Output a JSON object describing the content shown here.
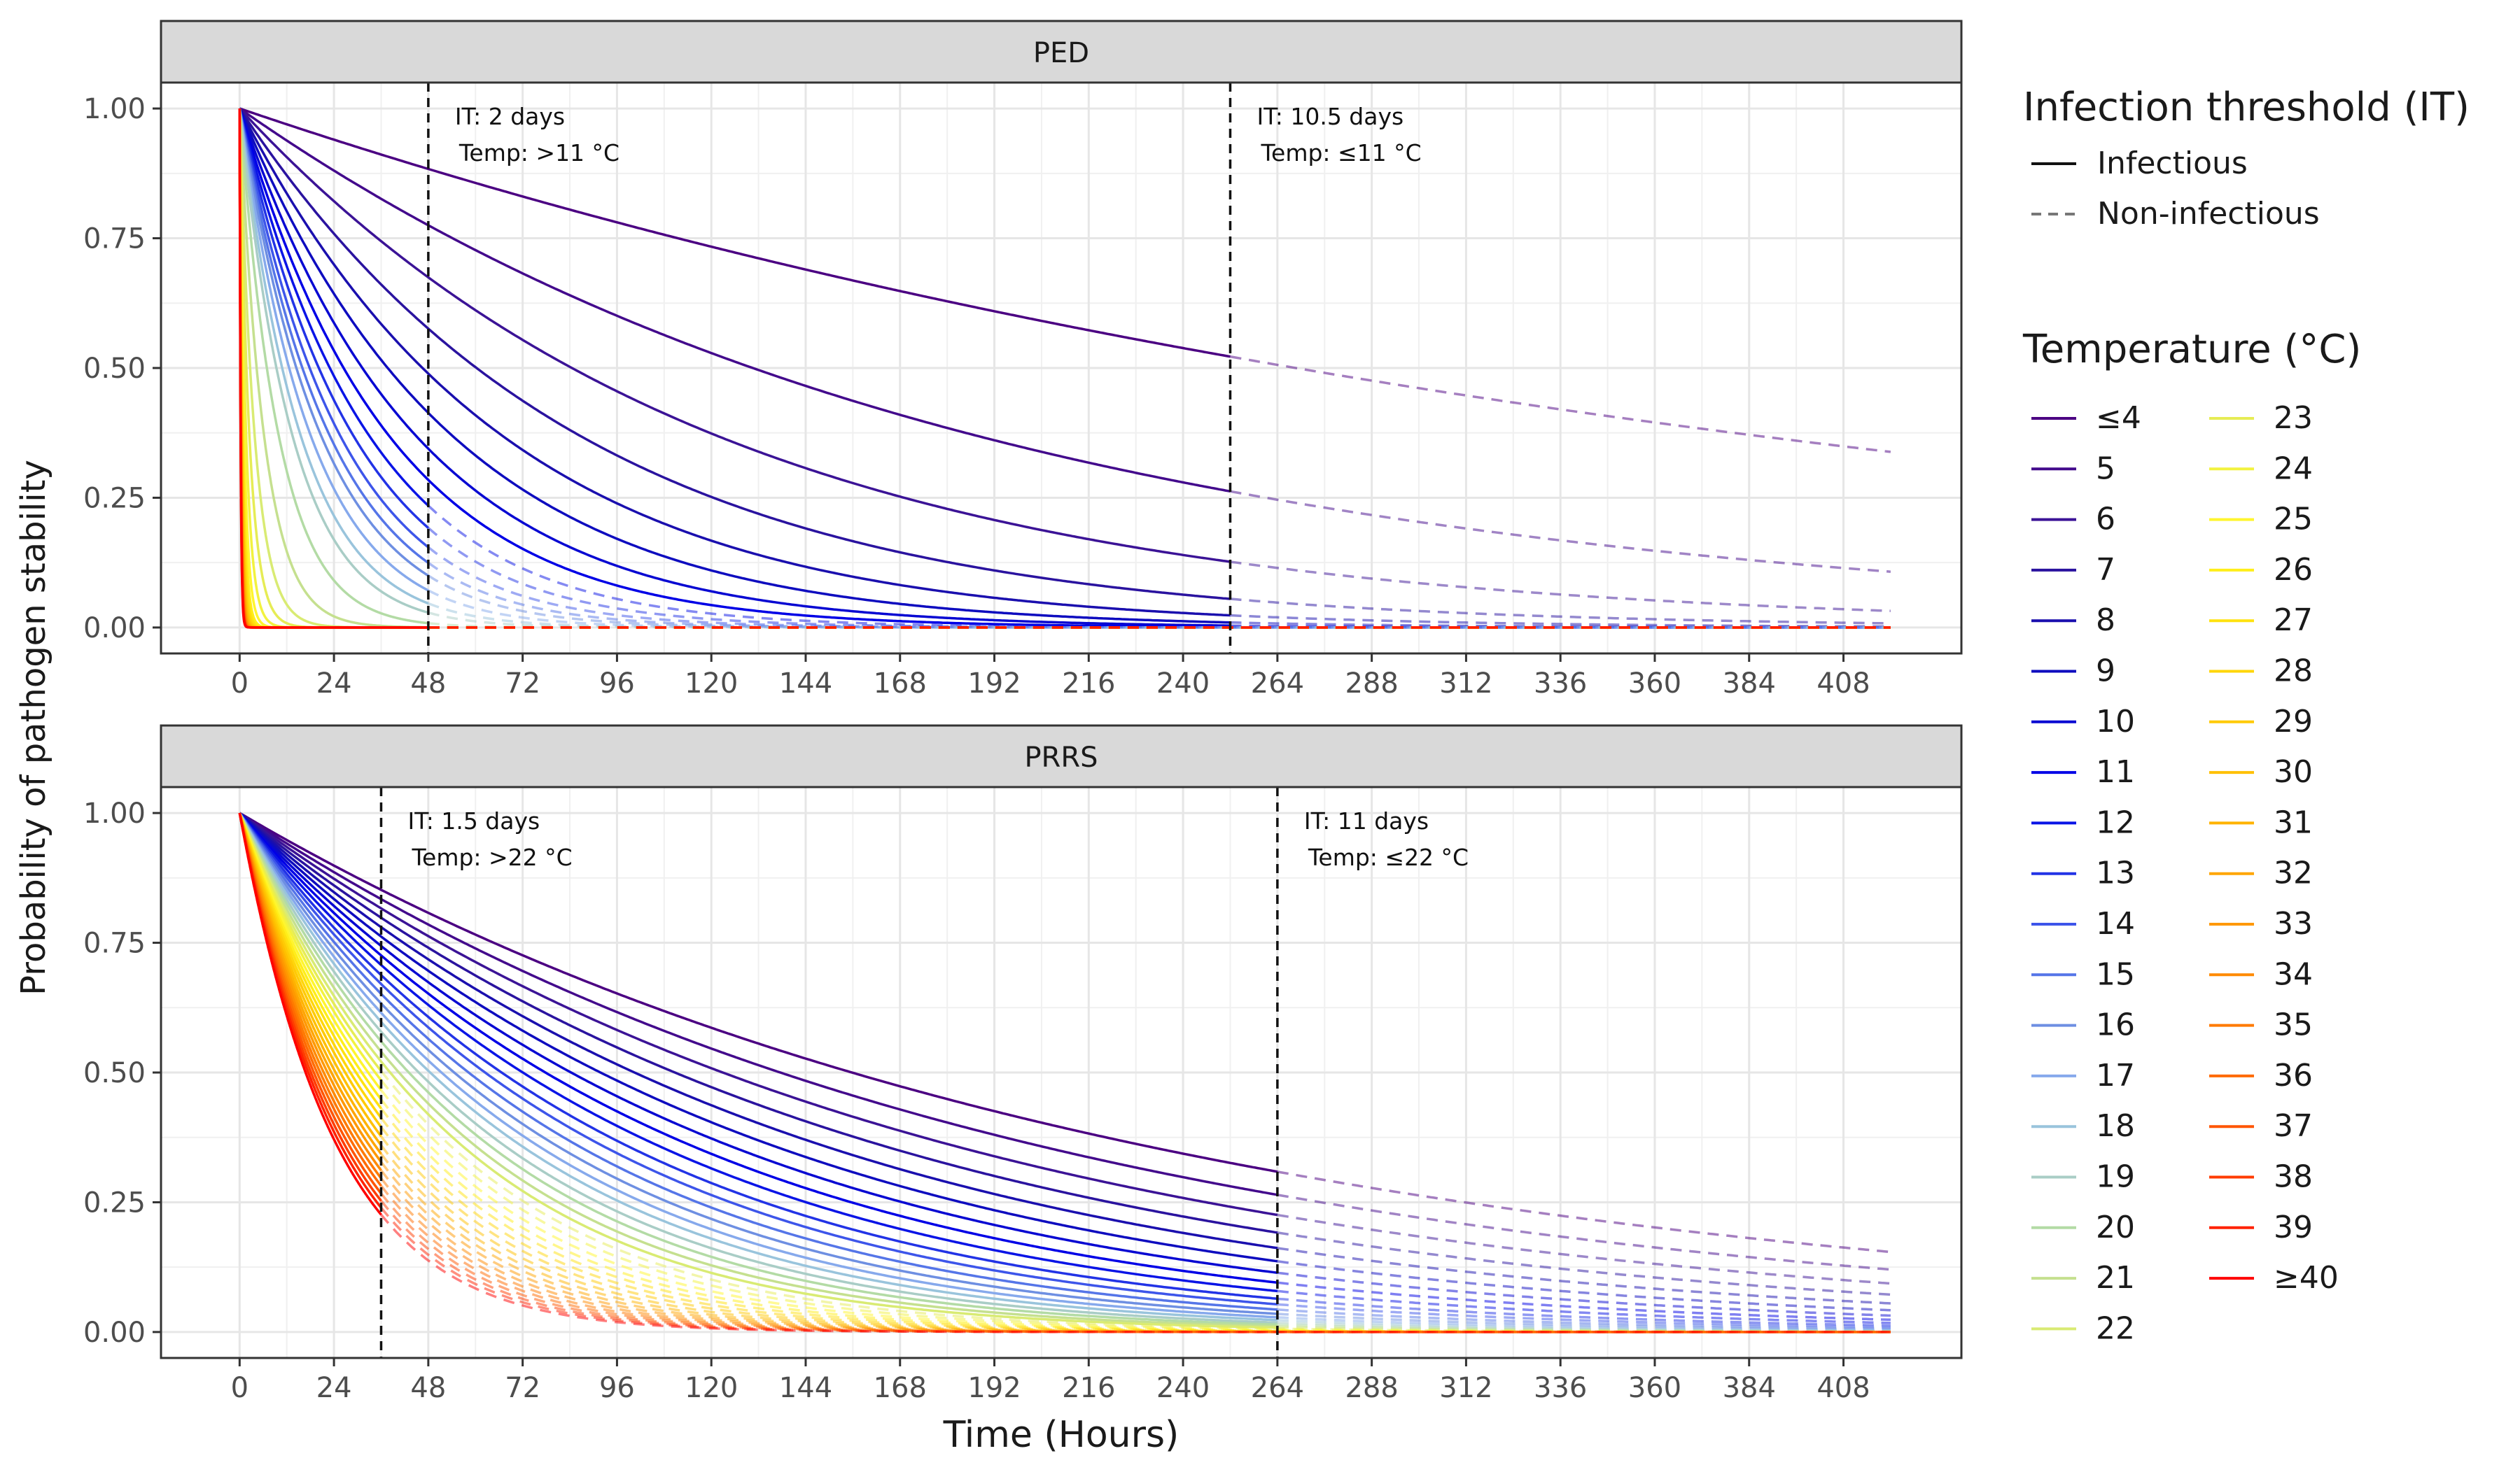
{
  "chart_data": {
    "type": "line",
    "ylabel": "Probability of pathogen stability",
    "xlabel": "Time (Hours)",
    "x_ticks": [
      0,
      24,
      48,
      72,
      96,
      120,
      144,
      168,
      192,
      216,
      240,
      264,
      288,
      312,
      336,
      360,
      384,
      408
    ],
    "xlim": [
      -20,
      438
    ],
    "y_ticks": [
      0.0,
      0.25,
      0.5,
      0.75,
      1.0
    ],
    "y_tick_labels": [
      "0.00",
      "0.25",
      "0.50",
      "0.75",
      "1.00"
    ],
    "ylim": [
      -0.05,
      1.05
    ],
    "max_time": 420,
    "legend": {
      "placement": "right",
      "threshold_title": "Infection threshold (IT)",
      "threshold_items": [
        {
          "label": "Infectious",
          "style": "solid"
        },
        {
          "label": "Non-infectious",
          "style": "dashed"
        }
      ],
      "temperature_title": "Temperature (°C)",
      "temperatures": [
        {
          "label": "≤4",
          "color": "#4B0082"
        },
        {
          "label": "5",
          "color": "#430A8C"
        },
        {
          "label": "6",
          "color": "#3B1396"
        },
        {
          "label": "7",
          "color": "#2A139F"
        },
        {
          "label": "8",
          "color": "#1A0FAE"
        },
        {
          "label": "9",
          "color": "#0E0CBF"
        },
        {
          "label": "10",
          "color": "#0808D2"
        },
        {
          "label": "11",
          "color": "#0000E6"
        },
        {
          "label": "12",
          "color": "#0A14E6"
        },
        {
          "label": "13",
          "color": "#2233E6"
        },
        {
          "label": "14",
          "color": "#3D55EA"
        },
        {
          "label": "15",
          "color": "#5575E8"
        },
        {
          "label": "16",
          "color": "#6E8FE2"
        },
        {
          "label": "17",
          "color": "#86A9EC"
        },
        {
          "label": "18",
          "color": "#99C4DC"
        },
        {
          "label": "19",
          "color": "#A9CDC6"
        },
        {
          "label": "20",
          "color": "#B3DBA5"
        },
        {
          "label": "21",
          "color": "#C5E08F"
        },
        {
          "label": "22",
          "color": "#D9EB73"
        },
        {
          "label": "23",
          "color": "#E6EC55"
        },
        {
          "label": "24",
          "color": "#F2F23F"
        },
        {
          "label": "25",
          "color": "#FFF52E"
        },
        {
          "label": "26",
          "color": "#FFEE1A"
        },
        {
          "label": "27",
          "color": "#FFE20F"
        },
        {
          "label": "28",
          "color": "#FFD60A"
        },
        {
          "label": "29",
          "color": "#FFCA05"
        },
        {
          "label": "30",
          "color": "#FFC000"
        },
        {
          "label": "31",
          "color": "#FFB300"
        },
        {
          "label": "32",
          "color": "#FFA500"
        },
        {
          "label": "33",
          "color": "#FF9800"
        },
        {
          "label": "34",
          "color": "#FF8A00"
        },
        {
          "label": "35",
          "color": "#FF7A00"
        },
        {
          "label": "36",
          "color": "#FF6A00"
        },
        {
          "label": "37",
          "color": "#FF5500"
        },
        {
          "label": "38",
          "color": "#FF3C00"
        },
        {
          "label": "39",
          "color": "#FF2200"
        },
        {
          "label": "≥40",
          "color": "#FF0000"
        }
      ]
    },
    "panels": [
      {
        "title": "PED",
        "thresholds": [
          {
            "hour": 48,
            "it_label": "IT: 2  days",
            "temp_label": "Temp: >11  °C"
          },
          {
            "hour": 252,
            "it_label": "IT: 10.5  days",
            "temp_label": "Temp: ≤11  °C"
          }
        ],
        "temp_split": 11,
        "decay_rates": [
          0.00258,
          0.00531,
          0.0082,
          0.0115,
          0.0149,
          0.0184,
          0.0222,
          0.0262,
          0.0302,
          0.0344,
          0.0389,
          0.0434,
          0.048,
          0.055,
          0.064,
          0.074,
          0.1,
          0.16,
          0.26,
          0.4,
          0.6,
          0.85,
          1.1,
          1.3,
          1.5,
          1.7,
          1.9,
          2.1,
          2.3,
          2.5,
          2.7,
          2.9,
          3.1,
          3.3,
          3.5,
          3.7,
          3.9
        ]
      },
      {
        "title": "PRRS",
        "thresholds": [
          {
            "hour": 36,
            "it_label": "IT: 1.5  days",
            "temp_label": "Temp: >22  °C"
          },
          {
            "hour": 264,
            "it_label": "IT: 11  days",
            "temp_label": "Temp: ≤22  °C"
          }
        ],
        "temp_split": 22,
        "decay_rates": [
          0.00445,
          0.00504,
          0.00564,
          0.00626,
          0.0069,
          0.00755,
          0.00822,
          0.00891,
          0.00962,
          0.0104,
          0.0111,
          0.0119,
          0.0127,
          0.0135,
          0.0143,
          0.0152,
          0.0161,
          0.0171,
          0.0181,
          0.0191,
          0.0201,
          0.0212,
          0.0223,
          0.0234,
          0.0246,
          0.0258,
          0.0271,
          0.0284,
          0.0297,
          0.031,
          0.0324,
          0.0338,
          0.0352,
          0.0367,
          0.0382,
          0.0397,
          0.0413
        ]
      }
    ]
  }
}
